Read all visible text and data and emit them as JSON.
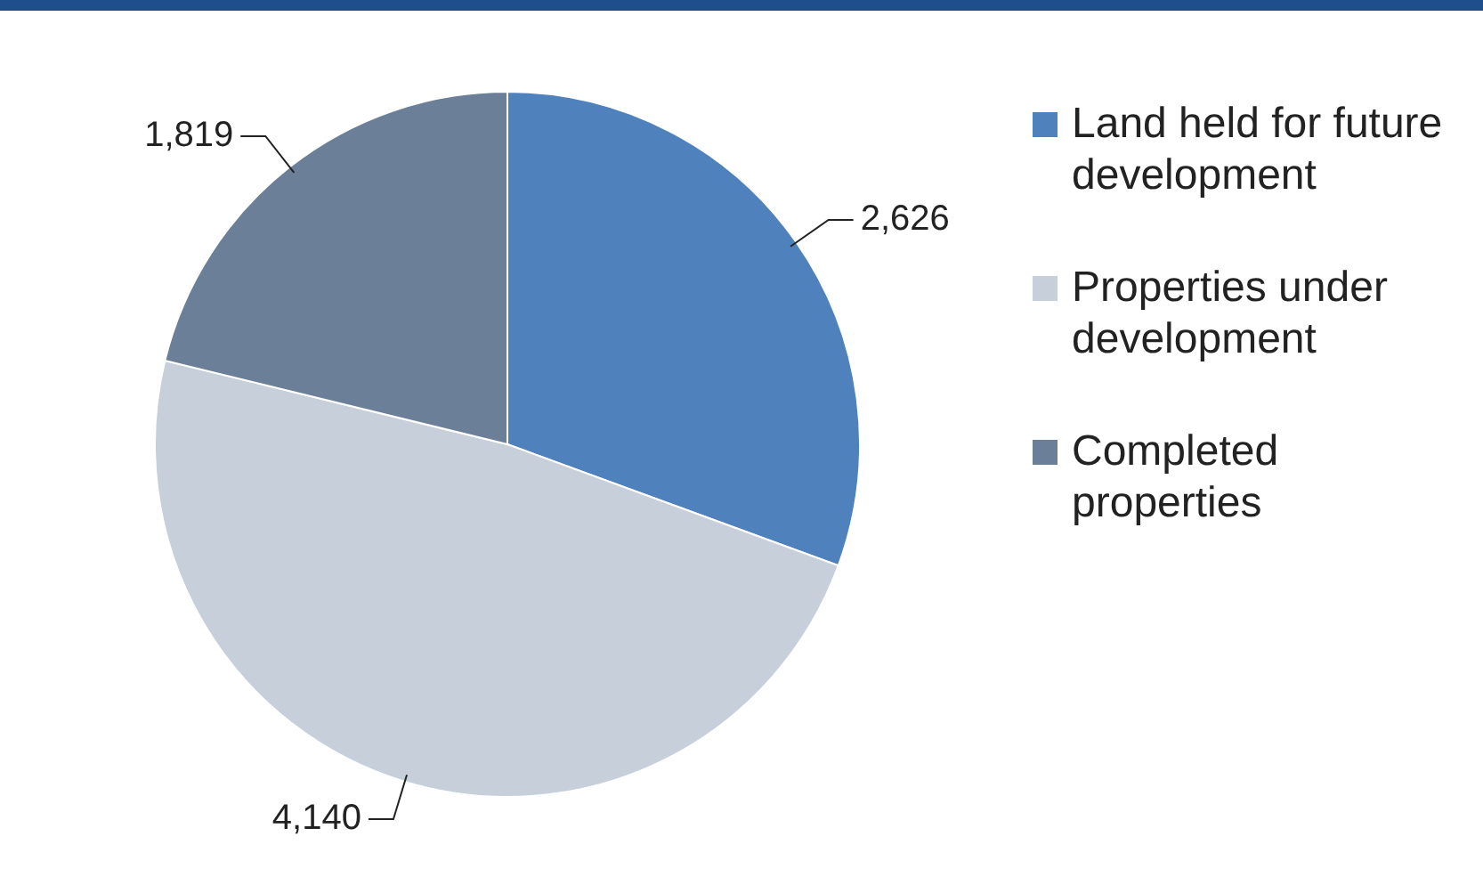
{
  "chart_data": {
    "type": "pie",
    "categories": [
      "Land held for future development",
      "Properties under development",
      "Completed properties"
    ],
    "values": [
      2626,
      4140,
      1819
    ],
    "colors": [
      "#4f81bd",
      "#c6cfda",
      "#6b7f99"
    ],
    "value_labels": [
      "2,626",
      "4,140",
      "1,819"
    ],
    "legend": "right"
  }
}
